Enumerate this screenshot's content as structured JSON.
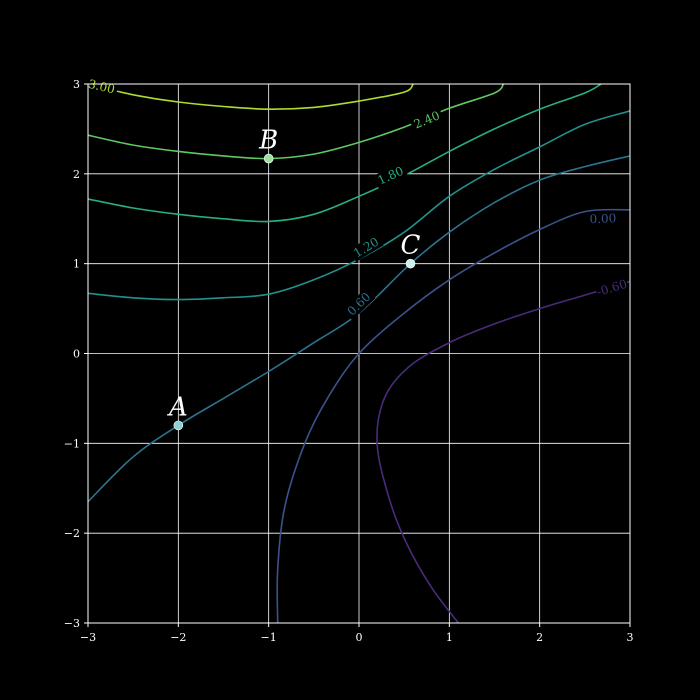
{
  "chart_data": {
    "type": "contour",
    "title": "",
    "xlabel": "",
    "ylabel": "",
    "xlim": [
      -3,
      3
    ],
    "ylim": [
      -3,
      3
    ],
    "grid": true,
    "background": "#000000",
    "axis_color": "#ffffff",
    "x_ticks": [
      "−3",
      "−2",
      "−1",
      "0",
      "1",
      "2",
      "3"
    ],
    "y_ticks": [
      "−3",
      "−2",
      "−1",
      "0",
      "1",
      "2",
      "3"
    ],
    "x_tick_values": [
      -3,
      -2,
      -1,
      0,
      1,
      2,
      3
    ],
    "y_tick_values": [
      -3,
      -2,
      -1,
      0,
      1,
      2,
      3
    ],
    "contours": [
      {
        "level": -0.6,
        "label": "-0.60",
        "color": "#472c7a",
        "branches": [
          [
            [
              1.1,
              -3.0
            ],
            [
              0.8,
              -2.6
            ],
            [
              0.52,
              -2.1
            ],
            [
              0.33,
              -1.6
            ],
            [
              0.2,
              -1.0
            ],
            [
              0.28,
              -0.5
            ],
            [
              0.55,
              -0.15
            ],
            [
              1.0,
              0.12
            ],
            [
              1.5,
              0.33
            ],
            [
              2.0,
              0.5
            ],
            [
              2.5,
              0.65
            ],
            [
              3.0,
              0.8
            ]
          ]
        ],
        "label_at": [
          2.8,
          0.73
        ]
      },
      {
        "level": 0.0,
        "label": "0.00",
        "color": "#3b528b",
        "branches": [
          [
            [
              -0.9,
              -3.0
            ],
            [
              -0.9,
              -2.4
            ],
            [
              -0.82,
              -1.7
            ],
            [
              -0.6,
              -1.0
            ],
            [
              -0.35,
              -0.5
            ],
            [
              0.0,
              0.0
            ],
            [
              0.5,
              0.45
            ],
            [
              1.0,
              0.82
            ],
            [
              1.5,
              1.12
            ],
            [
              2.0,
              1.38
            ],
            [
              2.5,
              1.58
            ],
            [
              3.0,
              1.6
            ]
          ]
        ],
        "label_at": [
          2.7,
          1.5
        ]
      },
      {
        "level": 0.6,
        "label": "0.60",
        "color": "#2c728e",
        "branches": [
          [
            [
              -3.0,
              -1.65
            ],
            [
              -2.5,
              -1.15
            ],
            [
              -2.0,
              -0.8
            ],
            [
              -1.5,
              -0.5
            ],
            [
              -1.0,
              -0.2
            ],
            [
              -0.5,
              0.12
            ],
            [
              0.0,
              0.45
            ],
            [
              0.57,
              1.0
            ],
            [
              1.0,
              1.35
            ],
            [
              1.5,
              1.68
            ],
            [
              2.0,
              1.93
            ],
            [
              2.5,
              2.08
            ],
            [
              3.0,
              2.2
            ]
          ]
        ],
        "label_at": [
          0.0,
          0.55
        ]
      },
      {
        "level": 1.2,
        "label": "1.20",
        "color": "#21918c",
        "branches": [
          [
            [
              -3.0,
              0.67
            ],
            [
              -2.5,
              0.62
            ],
            [
              -2.0,
              0.6
            ],
            [
              -1.5,
              0.62
            ],
            [
              -1.0,
              0.66
            ],
            [
              -0.5,
              0.82
            ],
            [
              0.0,
              1.05
            ],
            [
              0.5,
              1.35
            ],
            [
              1.0,
              1.75
            ],
            [
              1.5,
              2.05
            ],
            [
              2.0,
              2.3
            ],
            [
              2.5,
              2.55
            ],
            [
              3.0,
              2.7
            ]
          ]
        ],
        "label_at": [
          0.08,
          1.18
        ]
      },
      {
        "level": 1.8,
        "label": "1.80",
        "color": "#28ae80",
        "branches": [
          [
            [
              -3.0,
              1.72
            ],
            [
              -2.5,
              1.62
            ],
            [
              -2.0,
              1.55
            ],
            [
              -1.5,
              1.5
            ],
            [
              -1.0,
              1.47
            ],
            [
              -0.5,
              1.55
            ],
            [
              0.0,
              1.75
            ],
            [
              0.5,
              1.98
            ],
            [
              1.0,
              2.25
            ],
            [
              1.5,
              2.5
            ],
            [
              2.0,
              2.72
            ],
            [
              2.5,
              2.9
            ],
            [
              2.68,
              3.0
            ]
          ]
        ],
        "label_at": [
          0.35,
          1.98
        ]
      },
      {
        "level": 2.4,
        "label": "2.40",
        "color": "#5ec962",
        "branches": [
          [
            [
              -3.0,
              2.43
            ],
            [
              -2.5,
              2.32
            ],
            [
              -2.0,
              2.25
            ],
            [
              -1.5,
              2.2
            ],
            [
              -1.0,
              2.17
            ],
            [
              -0.5,
              2.22
            ],
            [
              0.0,
              2.35
            ],
            [
              0.5,
              2.52
            ],
            [
              1.0,
              2.73
            ],
            [
              1.5,
              2.9
            ],
            [
              1.6,
              3.0
            ]
          ]
        ],
        "label_at": [
          0.75,
          2.6
        ]
      },
      {
        "level": 3.0,
        "label": "3.00",
        "color": "#addc30",
        "branches": [
          [
            [
              -3.0,
              3.0
            ],
            [
              -2.5,
              2.88
            ],
            [
              -2.0,
              2.8
            ],
            [
              -1.5,
              2.75
            ],
            [
              -1.0,
              2.72
            ],
            [
              -0.5,
              2.74
            ],
            [
              0.0,
              2.81
            ],
            [
              0.5,
              2.91
            ],
            [
              0.6,
              3.0
            ]
          ]
        ],
        "label_at": [
          -2.85,
          2.97
        ]
      }
    ],
    "points": [
      {
        "name": "A",
        "x": -2.0,
        "y": -0.8,
        "color": "#8fd1d4"
      },
      {
        "name": "B",
        "x": -1.0,
        "y": 2.17,
        "color": "#9ee0a0"
      },
      {
        "name": "C",
        "x": 0.57,
        "y": 1.0,
        "color": "#cfeeee"
      }
    ]
  }
}
